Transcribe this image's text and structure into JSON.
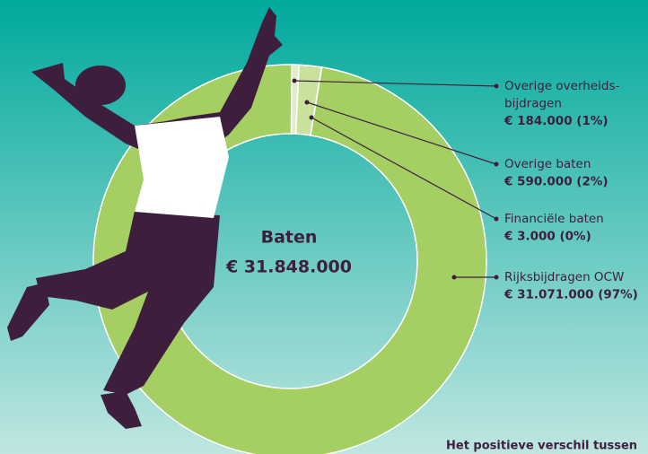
{
  "chart_data": {
    "type": "donut",
    "center_title": "Baten",
    "center_total": "€ 31.848.000",
    "labels": [
      [
        "Overige overheids-",
        "bijdragen"
      ],
      [
        "Overige baten"
      ],
      [
        "Financiële baten"
      ],
      [
        "Rijksbijdragen OCW"
      ]
    ],
    "values": [
      184000,
      590000,
      3000,
      31071000
    ],
    "value_labels": [
      "€ 184.000 (1%)",
      "€ 590.000 (2%)",
      "€ 3.000 (0%)",
      "€ 31.071.000 (97%)"
    ],
    "colors": [
      "#dfeec6",
      "#c8e29e",
      "#b5d87f",
      "#a5cf63"
    ],
    "footnote": "Het positieve verschil tussen"
  }
}
